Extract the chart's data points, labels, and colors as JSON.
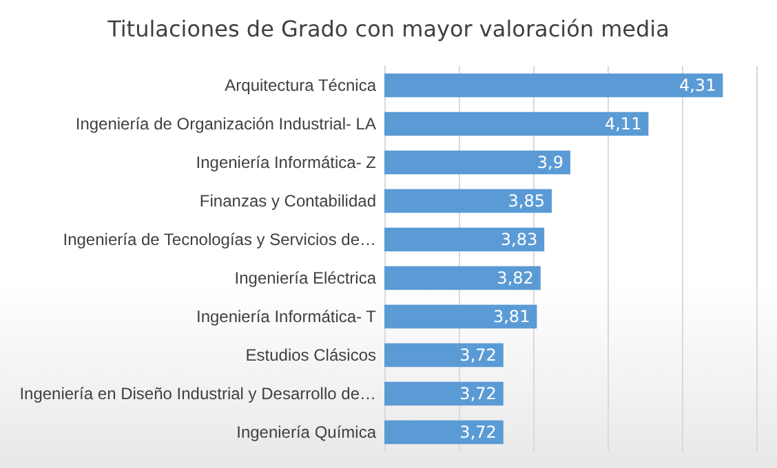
{
  "chart_data": {
    "type": "bar",
    "orientation": "horizontal",
    "title": "Titulaciones de Grado con mayor valoración media",
    "categories": [
      "Arquitectura Técnica",
      "Ingeniería de Organización Industrial- LA",
      "Ingeniería Informática- Z",
      "Finanzas y Contabilidad",
      "Ingeniería de Tecnologías y Servicios de…",
      "Ingeniería Eléctrica",
      "Ingeniería Informática- T",
      "Estudios Clásicos",
      "Ingeniería en Diseño Industrial y Desarrollo de…",
      "Ingeniería Química"
    ],
    "values": [
      4.31,
      4.11,
      3.9,
      3.85,
      3.83,
      3.82,
      3.81,
      3.72,
      3.72,
      3.72
    ],
    "value_labels": [
      "4,31",
      "4,11",
      "3,9",
      "3,85",
      "3,83",
      "3,82",
      "3,81",
      "3,72",
      "3,72",
      "3,72"
    ],
    "color": "#5b9bd5",
    "xlim": [
      3.4,
      4.4
    ],
    "xticks": [
      {
        "value": 3.4,
        "label": null
      },
      {
        "value": 3.6,
        "label": null
      },
      {
        "value": 3.8,
        "label": null
      },
      {
        "value": 4.0,
        "label": null
      },
      {
        "value": 4.2,
        "label": null
      },
      {
        "value": 4.4,
        "label": null
      }
    ],
    "grid": "x",
    "tick_labels": "y"
  }
}
